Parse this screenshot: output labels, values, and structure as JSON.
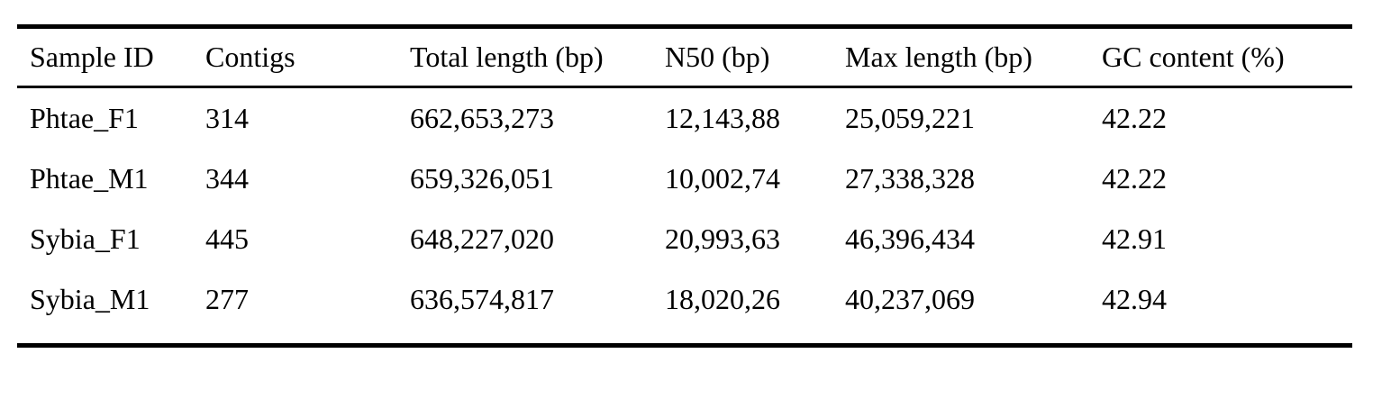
{
  "table": {
    "title": "assembly-statistics-table",
    "columns": {
      "sample_id": "Sample ID",
      "contigs": "Contigs",
      "total_length_bp": "Total length (bp)",
      "n50_bp": "N50 (bp)",
      "max_length_bp": "Max length (bp)",
      "gc_content_pct": "GC content (%)"
    },
    "rows": [
      {
        "sample_id": "Phtae_F1",
        "contigs": "314",
        "total_length_bp": "662,653,273",
        "n50_bp": "12,143,88",
        "max_length_bp": "25,059,221",
        "gc_content_pct": "42.22"
      },
      {
        "sample_id": "Phtae_M1",
        "contigs": "344",
        "total_length_bp": "659,326,051",
        "n50_bp": "10,002,74",
        "max_length_bp": "27,338,328",
        "gc_content_pct": "42.22"
      },
      {
        "sample_id": "Sybia_F1",
        "contigs": "445",
        "total_length_bp": "648,227,020",
        "n50_bp": "20,993,63",
        "max_length_bp": "46,396,434",
        "gc_content_pct": "42.91"
      },
      {
        "sample_id": "Sybia_M1",
        "contigs": "277",
        "total_length_bp": "636,574,817",
        "n50_bp": "18,020,26",
        "max_length_bp": "40,237,069",
        "gc_content_pct": "42.94"
      }
    ],
    "style": {
      "rule_color": "#000000",
      "text_color": "#000000",
      "background": "#ffffff"
    }
  }
}
